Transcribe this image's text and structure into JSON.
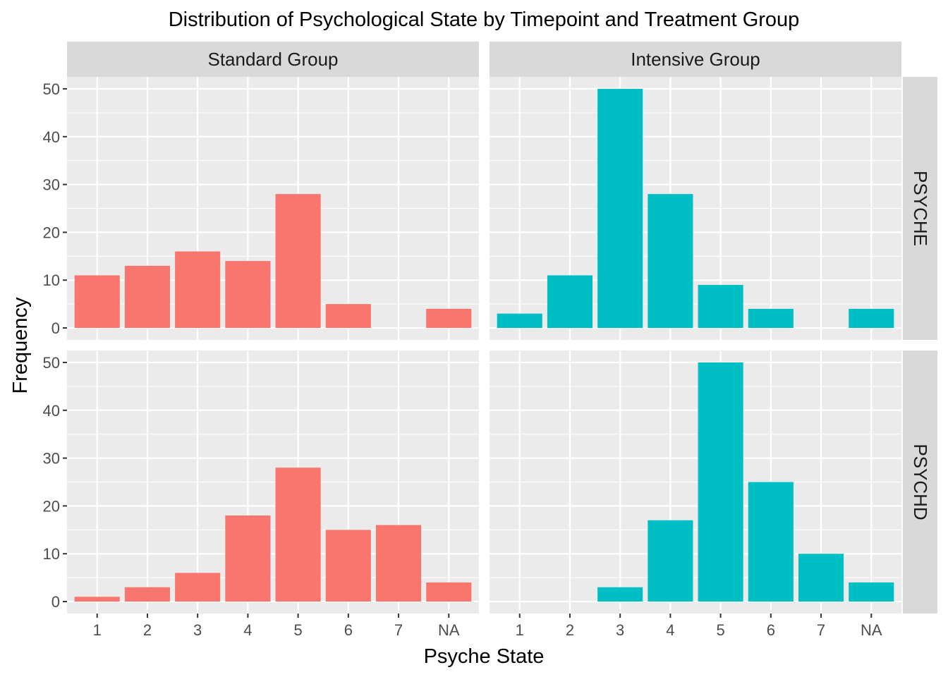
{
  "chart_data": {
    "type": "bar",
    "title": "Distribution of Psychological State by Timepoint and Treatment Group",
    "xlabel": "Psyche State",
    "ylabel": "Frequency",
    "categories": [
      "1",
      "2",
      "3",
      "4",
      "5",
      "6",
      "7",
      "NA"
    ],
    "yticks": [
      0,
      10,
      20,
      30,
      40,
      50
    ],
    "ylim": [
      -2.5,
      52.5
    ],
    "grid": true,
    "legend": "none",
    "column_facets": [
      "Standard Group",
      "Intensive Group"
    ],
    "row_facets": [
      "PSYCHE",
      "PSYCHD"
    ],
    "colors": {
      "Standard Group": "#F8766D",
      "Intensive Group": "#00BFC4",
      "panel_bg": "#EBEBEB",
      "strip_bg": "#D9D9D9"
    },
    "panels": [
      {
        "column": "Standard Group",
        "row": "PSYCHE",
        "values": [
          11,
          13,
          16,
          14,
          28,
          5,
          0,
          4
        ]
      },
      {
        "column": "Intensive Group",
        "row": "PSYCHE",
        "values": [
          3,
          11,
          50,
          28,
          9,
          4,
          0,
          4
        ]
      },
      {
        "column": "Standard Group",
        "row": "PSYCHD",
        "values": [
          1,
          3,
          6,
          18,
          28,
          15,
          16,
          4
        ]
      },
      {
        "column": "Intensive Group",
        "row": "PSYCHD",
        "values": [
          0,
          0,
          3,
          17,
          50,
          25,
          10,
          4
        ]
      }
    ]
  }
}
